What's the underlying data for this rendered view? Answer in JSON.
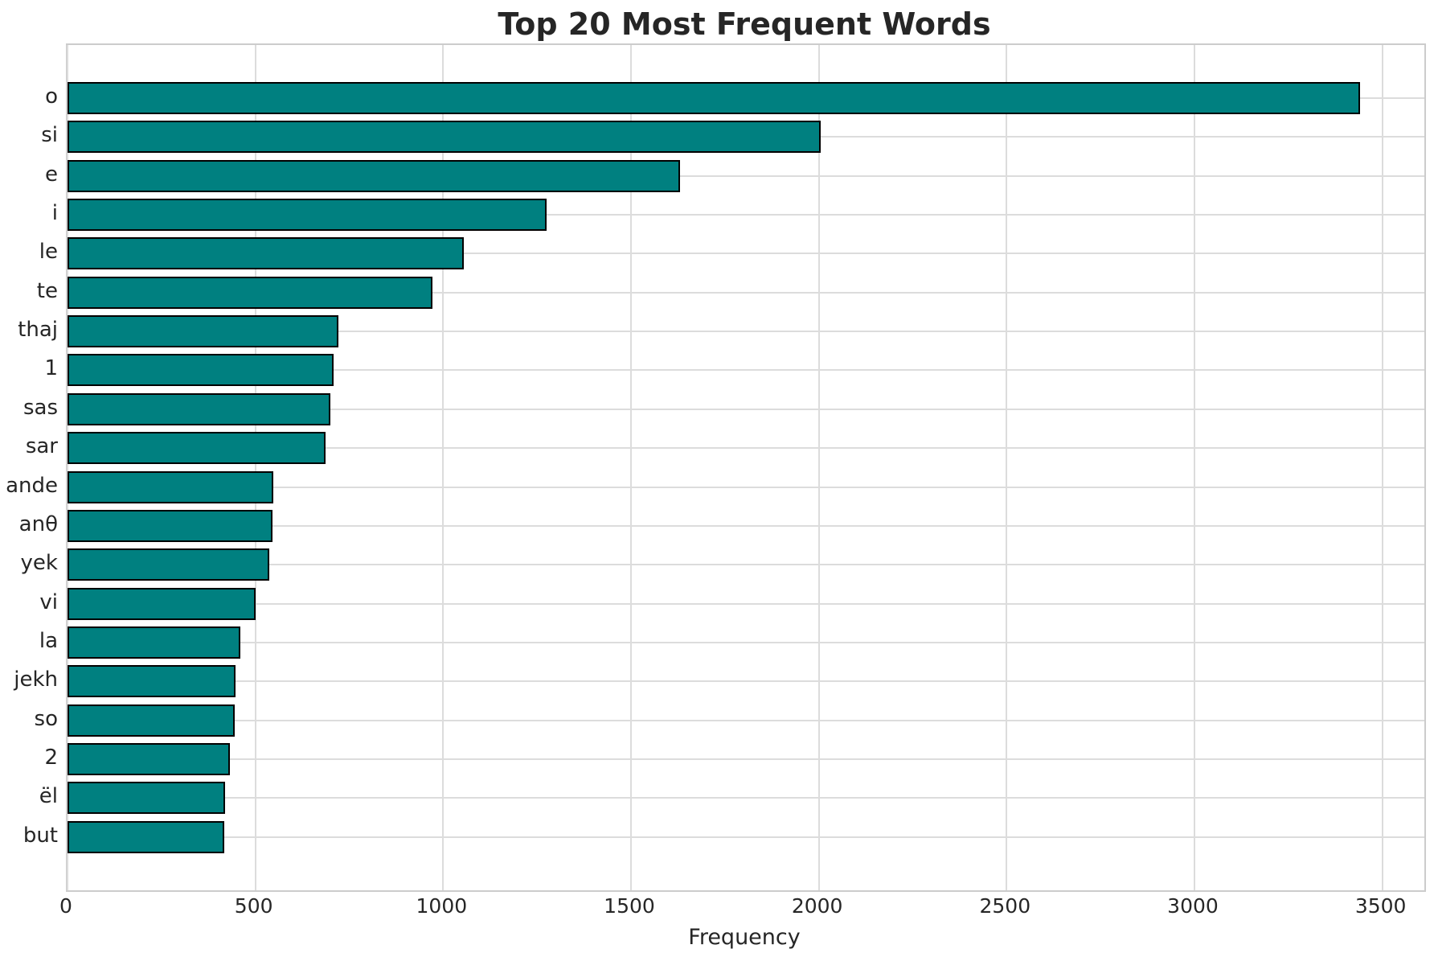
{
  "title": "Top 20 Most Frequent Words",
  "chart_data": {
    "type": "bar",
    "orientation": "horizontal",
    "title": "Top 20 Most Frequent Words",
    "xlabel": "Frequency",
    "ylabel": "",
    "categories": [
      "o",
      "si",
      "e",
      "i",
      "le",
      "te",
      "thaj",
      "1",
      "sas",
      "sar",
      "ande",
      "anθ",
      "yek",
      "vi",
      "la",
      "jekh",
      "so",
      "2",
      "ël",
      "but"
    ],
    "values": [
      3440,
      2005,
      1630,
      1275,
      1055,
      972,
      721,
      708,
      700,
      687,
      547,
      546,
      537,
      501,
      460,
      448,
      445,
      432,
      420,
      417
    ],
    "x_ticks": [
      0,
      500,
      1000,
      1500,
      2000,
      2500,
      3000,
      3500
    ],
    "xlim": [
      0,
      3612
    ],
    "grid": true,
    "legend_position": "none",
    "bar_color": "#008080",
    "bar_edge_color": "#000000",
    "grid_color": "#dcdcdc",
    "text_color": "#262626"
  }
}
